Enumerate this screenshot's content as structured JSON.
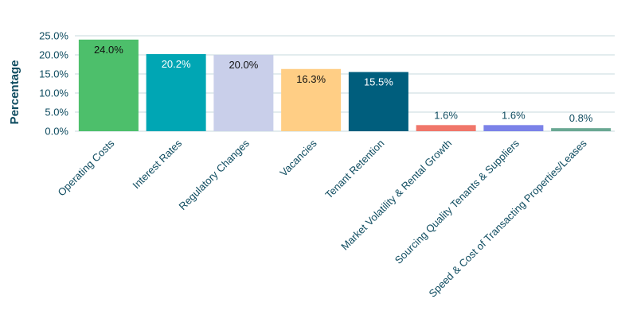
{
  "chart_data": {
    "type": "bar",
    "ylabel": "Percentage",
    "xlabel": "",
    "title": "",
    "ylim": [
      0,
      25
    ],
    "yticks": [
      0,
      5,
      10,
      15,
      20,
      25
    ],
    "ytick_labels": [
      "0.0%",
      "5.0%",
      "10.0%",
      "15.0%",
      "20.0%",
      "25.0%"
    ],
    "grid": true,
    "legend": "none",
    "categories": [
      "Operating Costs",
      "Interest Rates",
      "Regulatory Changes",
      "Vacancies",
      "Tenant Retention",
      "Market Volatility & Rental Growth",
      "Sourcing Quality Tenants & Suppliers",
      "Speed & Cost of Transacting Properties/Leases"
    ],
    "values": [
      24.0,
      20.2,
      20.0,
      16.3,
      15.5,
      1.6,
      1.6,
      0.8
    ],
    "data_labels": [
      "24.0%",
      "20.2%",
      "20.0%",
      "16.3%",
      "15.5%",
      "1.6%",
      "1.6%",
      "0.8%"
    ],
    "colors": [
      "#4dbf6b",
      "#00a6b4",
      "#c9cfea",
      "#ffce85",
      "#005e7d",
      "#f0766a",
      "#7b82e8",
      "#6aa893"
    ],
    "label_colors": [
      "#111111",
      "#ffffff",
      "#111111",
      "#111111",
      "#ffffff",
      "#0f4c60",
      "#0f4c60",
      "#0f4c60"
    ],
    "text_color": "#0f4c60",
    "grid_color": "#c7dadd"
  }
}
